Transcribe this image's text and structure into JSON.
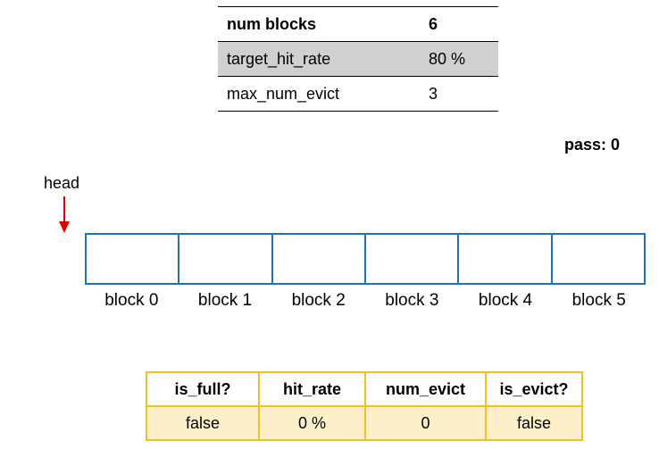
{
  "params": {
    "rows": [
      {
        "key": "num blocks",
        "value": "6"
      },
      {
        "key": "target_hit_rate",
        "value": "80 %"
      },
      {
        "key": "max_num_evict",
        "value": "3"
      }
    ]
  },
  "pass_label": "pass: 0",
  "head_label": "head",
  "blocks": {
    "labels": [
      "block 0",
      "block 1",
      "block 2",
      "block 3",
      "block 4",
      "block 5"
    ]
  },
  "status": {
    "headers": [
      "is_full?",
      "hit_rate",
      "num_evict",
      "is_evict?"
    ],
    "values": [
      "false",
      "0 %",
      "0",
      "false"
    ]
  },
  "colors": {
    "block_border": "#1f72b8",
    "arrow": "#e00000",
    "status_border": "#f0bf2a",
    "status_fill": "#fdefc8",
    "param_shade": "#d0d0d0"
  }
}
